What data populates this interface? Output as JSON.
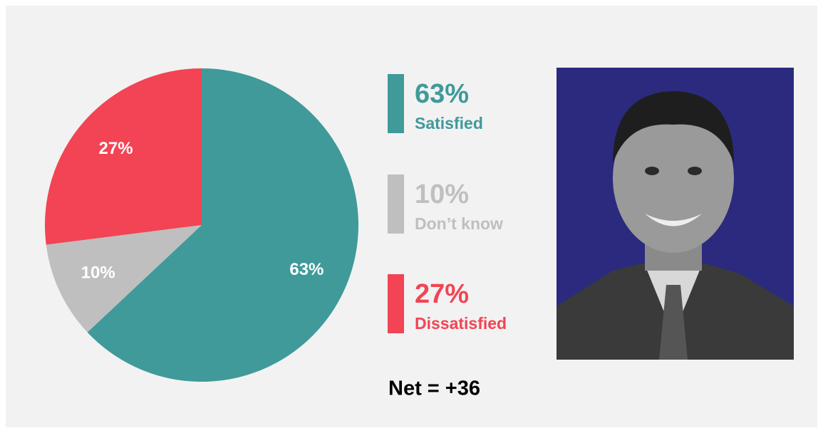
{
  "chart_data": {
    "type": "pie",
    "categories": [
      "Satisfied",
      "Don’t know",
      "Dissatisfied"
    ],
    "values": [
      63,
      10,
      27
    ],
    "value_labels": [
      "63%",
      "10%",
      "27%"
    ],
    "colors": [
      "#409a9a",
      "#bfbfbf",
      "#f24454"
    ],
    "net_label": "Net = +36"
  }
}
